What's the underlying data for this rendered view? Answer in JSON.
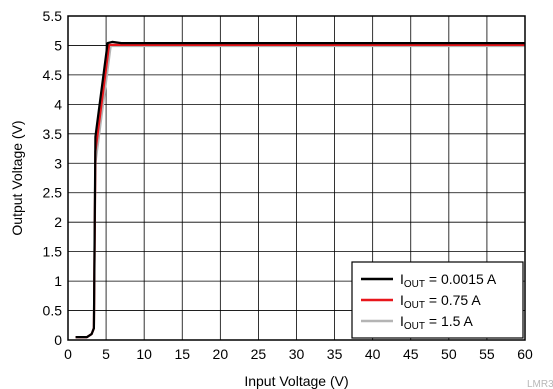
{
  "chart_data": {
    "type": "line",
    "xlabel": "Input Voltage (V)",
    "ylabel": "Output Voltage (V)",
    "xlim": [
      0,
      60
    ],
    "ylim": [
      0,
      5.5
    ],
    "x_ticks": [
      0,
      5,
      10,
      15,
      20,
      25,
      30,
      35,
      40,
      45,
      50,
      55,
      60
    ],
    "y_ticks": [
      0,
      0.5,
      1,
      1.5,
      2,
      2.5,
      3,
      3.5,
      4,
      4.5,
      5,
      5.5
    ],
    "x_tick_labels": [
      "0",
      "5",
      "10",
      "15",
      "20",
      "25",
      "30",
      "35",
      "40",
      "45",
      "50",
      "55",
      "60"
    ],
    "y_tick_labels": [
      "0",
      "0.5",
      "1",
      "1.5",
      "2",
      "2.5",
      "3",
      "3.5",
      "4",
      "4.5",
      "5",
      "5.5"
    ],
    "grid": true,
    "legend_position": "bottom-right",
    "series": [
      {
        "name": "I_OUT = 0.0015 A",
        "legend_main": "I",
        "legend_sub": "OUT",
        "legend_rest": " = 0.0015 A",
        "color": "#000000",
        "x": [
          1,
          2.5,
          3.1,
          3.4,
          3.6,
          5.2,
          5.8,
          7,
          60
        ],
        "y": [
          0.05,
          0.05,
          0.1,
          0.2,
          3.45,
          5.04,
          5.06,
          5.04,
          5.04
        ]
      },
      {
        "name": "I_OUT = 0.75 A",
        "legend_main": "I",
        "legend_sub": "OUT",
        "legend_rest": " = 0.75 A",
        "color": "#e8161b",
        "x": [
          1,
          2.5,
          3.1,
          3.4,
          3.6,
          5.4,
          6,
          7,
          60
        ],
        "y": [
          0.05,
          0.05,
          0.1,
          0.2,
          3.2,
          5.01,
          5.01,
          5.01,
          5.01
        ]
      },
      {
        "name": "I_OUT = 1.5 A",
        "legend_main": "I",
        "legend_sub": "OUT",
        "legend_rest": " = 1.5 A",
        "color": "#b4b4b4",
        "x": [
          1,
          2.5,
          3.1,
          3.4,
          3.6,
          5.6,
          6.2,
          7,
          60
        ],
        "y": [
          0.05,
          0.05,
          0.1,
          0.2,
          3.0,
          4.99,
          4.99,
          4.99,
          4.99
        ]
      }
    ]
  },
  "watermark": "LMR3"
}
